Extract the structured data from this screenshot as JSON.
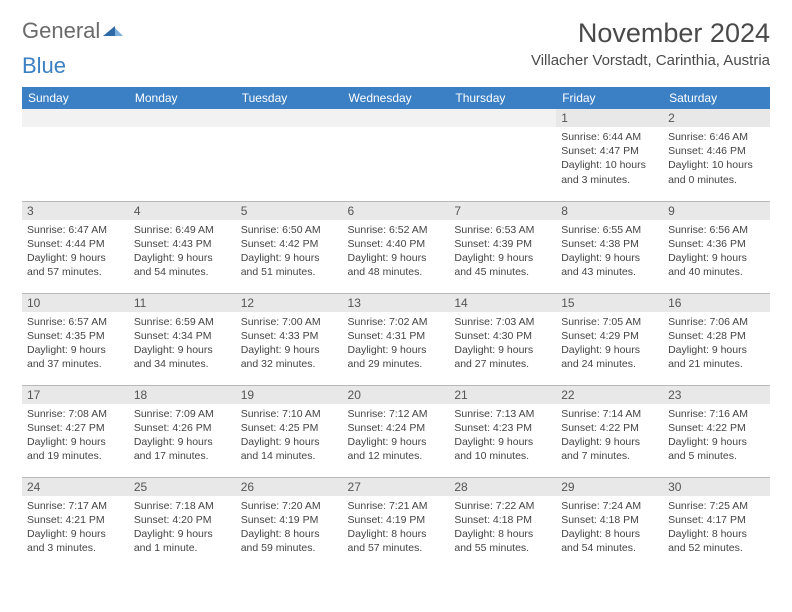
{
  "logo": {
    "word1": "General",
    "word2": "Blue"
  },
  "title": "November 2024",
  "location": "Villacher Vorstadt, Carinthia, Austria",
  "colors": {
    "header_bg": "#3b7fc4",
    "header_text": "#ffffff",
    "daynum_bg": "#e8e8e8",
    "border": "#b8b8b8",
    "text": "#444444",
    "logo_gray": "#6a6a6a",
    "logo_blue": "#3b7fc4"
  },
  "day_headers": [
    "Sunday",
    "Monday",
    "Tuesday",
    "Wednesday",
    "Thursday",
    "Friday",
    "Saturday"
  ],
  "weeks": [
    [
      null,
      null,
      null,
      null,
      null,
      {
        "n": "1",
        "sunrise": "Sunrise: 6:44 AM",
        "sunset": "Sunset: 4:47 PM",
        "daylight": "Daylight: 10 hours and 3 minutes."
      },
      {
        "n": "2",
        "sunrise": "Sunrise: 6:46 AM",
        "sunset": "Sunset: 4:46 PM",
        "daylight": "Daylight: 10 hours and 0 minutes."
      }
    ],
    [
      {
        "n": "3",
        "sunrise": "Sunrise: 6:47 AM",
        "sunset": "Sunset: 4:44 PM",
        "daylight": "Daylight: 9 hours and 57 minutes."
      },
      {
        "n": "4",
        "sunrise": "Sunrise: 6:49 AM",
        "sunset": "Sunset: 4:43 PM",
        "daylight": "Daylight: 9 hours and 54 minutes."
      },
      {
        "n": "5",
        "sunrise": "Sunrise: 6:50 AM",
        "sunset": "Sunset: 4:42 PM",
        "daylight": "Daylight: 9 hours and 51 minutes."
      },
      {
        "n": "6",
        "sunrise": "Sunrise: 6:52 AM",
        "sunset": "Sunset: 4:40 PM",
        "daylight": "Daylight: 9 hours and 48 minutes."
      },
      {
        "n": "7",
        "sunrise": "Sunrise: 6:53 AM",
        "sunset": "Sunset: 4:39 PM",
        "daylight": "Daylight: 9 hours and 45 minutes."
      },
      {
        "n": "8",
        "sunrise": "Sunrise: 6:55 AM",
        "sunset": "Sunset: 4:38 PM",
        "daylight": "Daylight: 9 hours and 43 minutes."
      },
      {
        "n": "9",
        "sunrise": "Sunrise: 6:56 AM",
        "sunset": "Sunset: 4:36 PM",
        "daylight": "Daylight: 9 hours and 40 minutes."
      }
    ],
    [
      {
        "n": "10",
        "sunrise": "Sunrise: 6:57 AM",
        "sunset": "Sunset: 4:35 PM",
        "daylight": "Daylight: 9 hours and 37 minutes."
      },
      {
        "n": "11",
        "sunrise": "Sunrise: 6:59 AM",
        "sunset": "Sunset: 4:34 PM",
        "daylight": "Daylight: 9 hours and 34 minutes."
      },
      {
        "n": "12",
        "sunrise": "Sunrise: 7:00 AM",
        "sunset": "Sunset: 4:33 PM",
        "daylight": "Daylight: 9 hours and 32 minutes."
      },
      {
        "n": "13",
        "sunrise": "Sunrise: 7:02 AM",
        "sunset": "Sunset: 4:31 PM",
        "daylight": "Daylight: 9 hours and 29 minutes."
      },
      {
        "n": "14",
        "sunrise": "Sunrise: 7:03 AM",
        "sunset": "Sunset: 4:30 PM",
        "daylight": "Daylight: 9 hours and 27 minutes."
      },
      {
        "n": "15",
        "sunrise": "Sunrise: 7:05 AM",
        "sunset": "Sunset: 4:29 PM",
        "daylight": "Daylight: 9 hours and 24 minutes."
      },
      {
        "n": "16",
        "sunrise": "Sunrise: 7:06 AM",
        "sunset": "Sunset: 4:28 PM",
        "daylight": "Daylight: 9 hours and 21 minutes."
      }
    ],
    [
      {
        "n": "17",
        "sunrise": "Sunrise: 7:08 AM",
        "sunset": "Sunset: 4:27 PM",
        "daylight": "Daylight: 9 hours and 19 minutes."
      },
      {
        "n": "18",
        "sunrise": "Sunrise: 7:09 AM",
        "sunset": "Sunset: 4:26 PM",
        "daylight": "Daylight: 9 hours and 17 minutes."
      },
      {
        "n": "19",
        "sunrise": "Sunrise: 7:10 AM",
        "sunset": "Sunset: 4:25 PM",
        "daylight": "Daylight: 9 hours and 14 minutes."
      },
      {
        "n": "20",
        "sunrise": "Sunrise: 7:12 AM",
        "sunset": "Sunset: 4:24 PM",
        "daylight": "Daylight: 9 hours and 12 minutes."
      },
      {
        "n": "21",
        "sunrise": "Sunrise: 7:13 AM",
        "sunset": "Sunset: 4:23 PM",
        "daylight": "Daylight: 9 hours and 10 minutes."
      },
      {
        "n": "22",
        "sunrise": "Sunrise: 7:14 AM",
        "sunset": "Sunset: 4:22 PM",
        "daylight": "Daylight: 9 hours and 7 minutes."
      },
      {
        "n": "23",
        "sunrise": "Sunrise: 7:16 AM",
        "sunset": "Sunset: 4:22 PM",
        "daylight": "Daylight: 9 hours and 5 minutes."
      }
    ],
    [
      {
        "n": "24",
        "sunrise": "Sunrise: 7:17 AM",
        "sunset": "Sunset: 4:21 PM",
        "daylight": "Daylight: 9 hours and 3 minutes."
      },
      {
        "n": "25",
        "sunrise": "Sunrise: 7:18 AM",
        "sunset": "Sunset: 4:20 PM",
        "daylight": "Daylight: 9 hours and 1 minute."
      },
      {
        "n": "26",
        "sunrise": "Sunrise: 7:20 AM",
        "sunset": "Sunset: 4:19 PM",
        "daylight": "Daylight: 8 hours and 59 minutes."
      },
      {
        "n": "27",
        "sunrise": "Sunrise: 7:21 AM",
        "sunset": "Sunset: 4:19 PM",
        "daylight": "Daylight: 8 hours and 57 minutes."
      },
      {
        "n": "28",
        "sunrise": "Sunrise: 7:22 AM",
        "sunset": "Sunset: 4:18 PM",
        "daylight": "Daylight: 8 hours and 55 minutes."
      },
      {
        "n": "29",
        "sunrise": "Sunrise: 7:24 AM",
        "sunset": "Sunset: 4:18 PM",
        "daylight": "Daylight: 8 hours and 54 minutes."
      },
      {
        "n": "30",
        "sunrise": "Sunrise: 7:25 AM",
        "sunset": "Sunset: 4:17 PM",
        "daylight": "Daylight: 8 hours and 52 minutes."
      }
    ]
  ]
}
